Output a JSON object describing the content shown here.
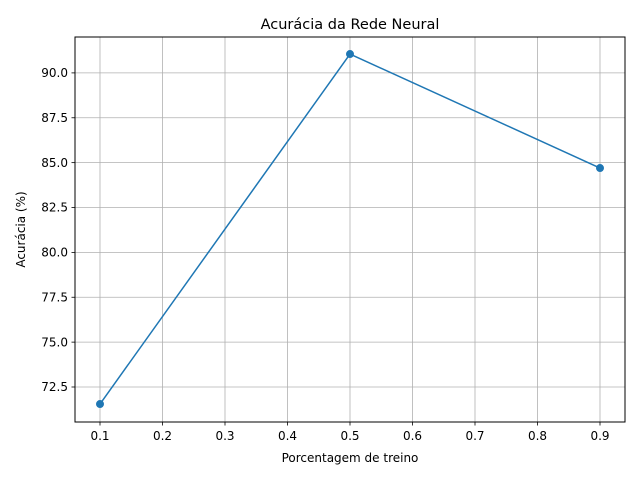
{
  "chart_data": {
    "type": "line",
    "title": "Acurácia da Rede Neural",
    "xlabel": "Porcentagem de treino",
    "ylabel": "Acurácia (%)",
    "x": [
      0.1,
      0.5,
      0.9
    ],
    "series": [
      {
        "values": [
          71.55,
          91.05,
          84.7
        ],
        "color": "#1f77b4",
        "marker": "circle"
      }
    ],
    "xlim": [
      0.06,
      0.94
    ],
    "ylim": [
      70.55,
      92.0
    ],
    "xticks": [
      "0.1",
      "0.2",
      "0.3",
      "0.4",
      "0.5",
      "0.6",
      "0.7",
      "0.8",
      "0.9"
    ],
    "yticks": [
      "72.5",
      "75.0",
      "77.5",
      "80.0",
      "82.5",
      "85.0",
      "87.5",
      "90.0"
    ],
    "grid": true,
    "colors": {
      "line": "#1f77b4",
      "grid": "#b0b0b0",
      "axes": "#000000"
    }
  }
}
